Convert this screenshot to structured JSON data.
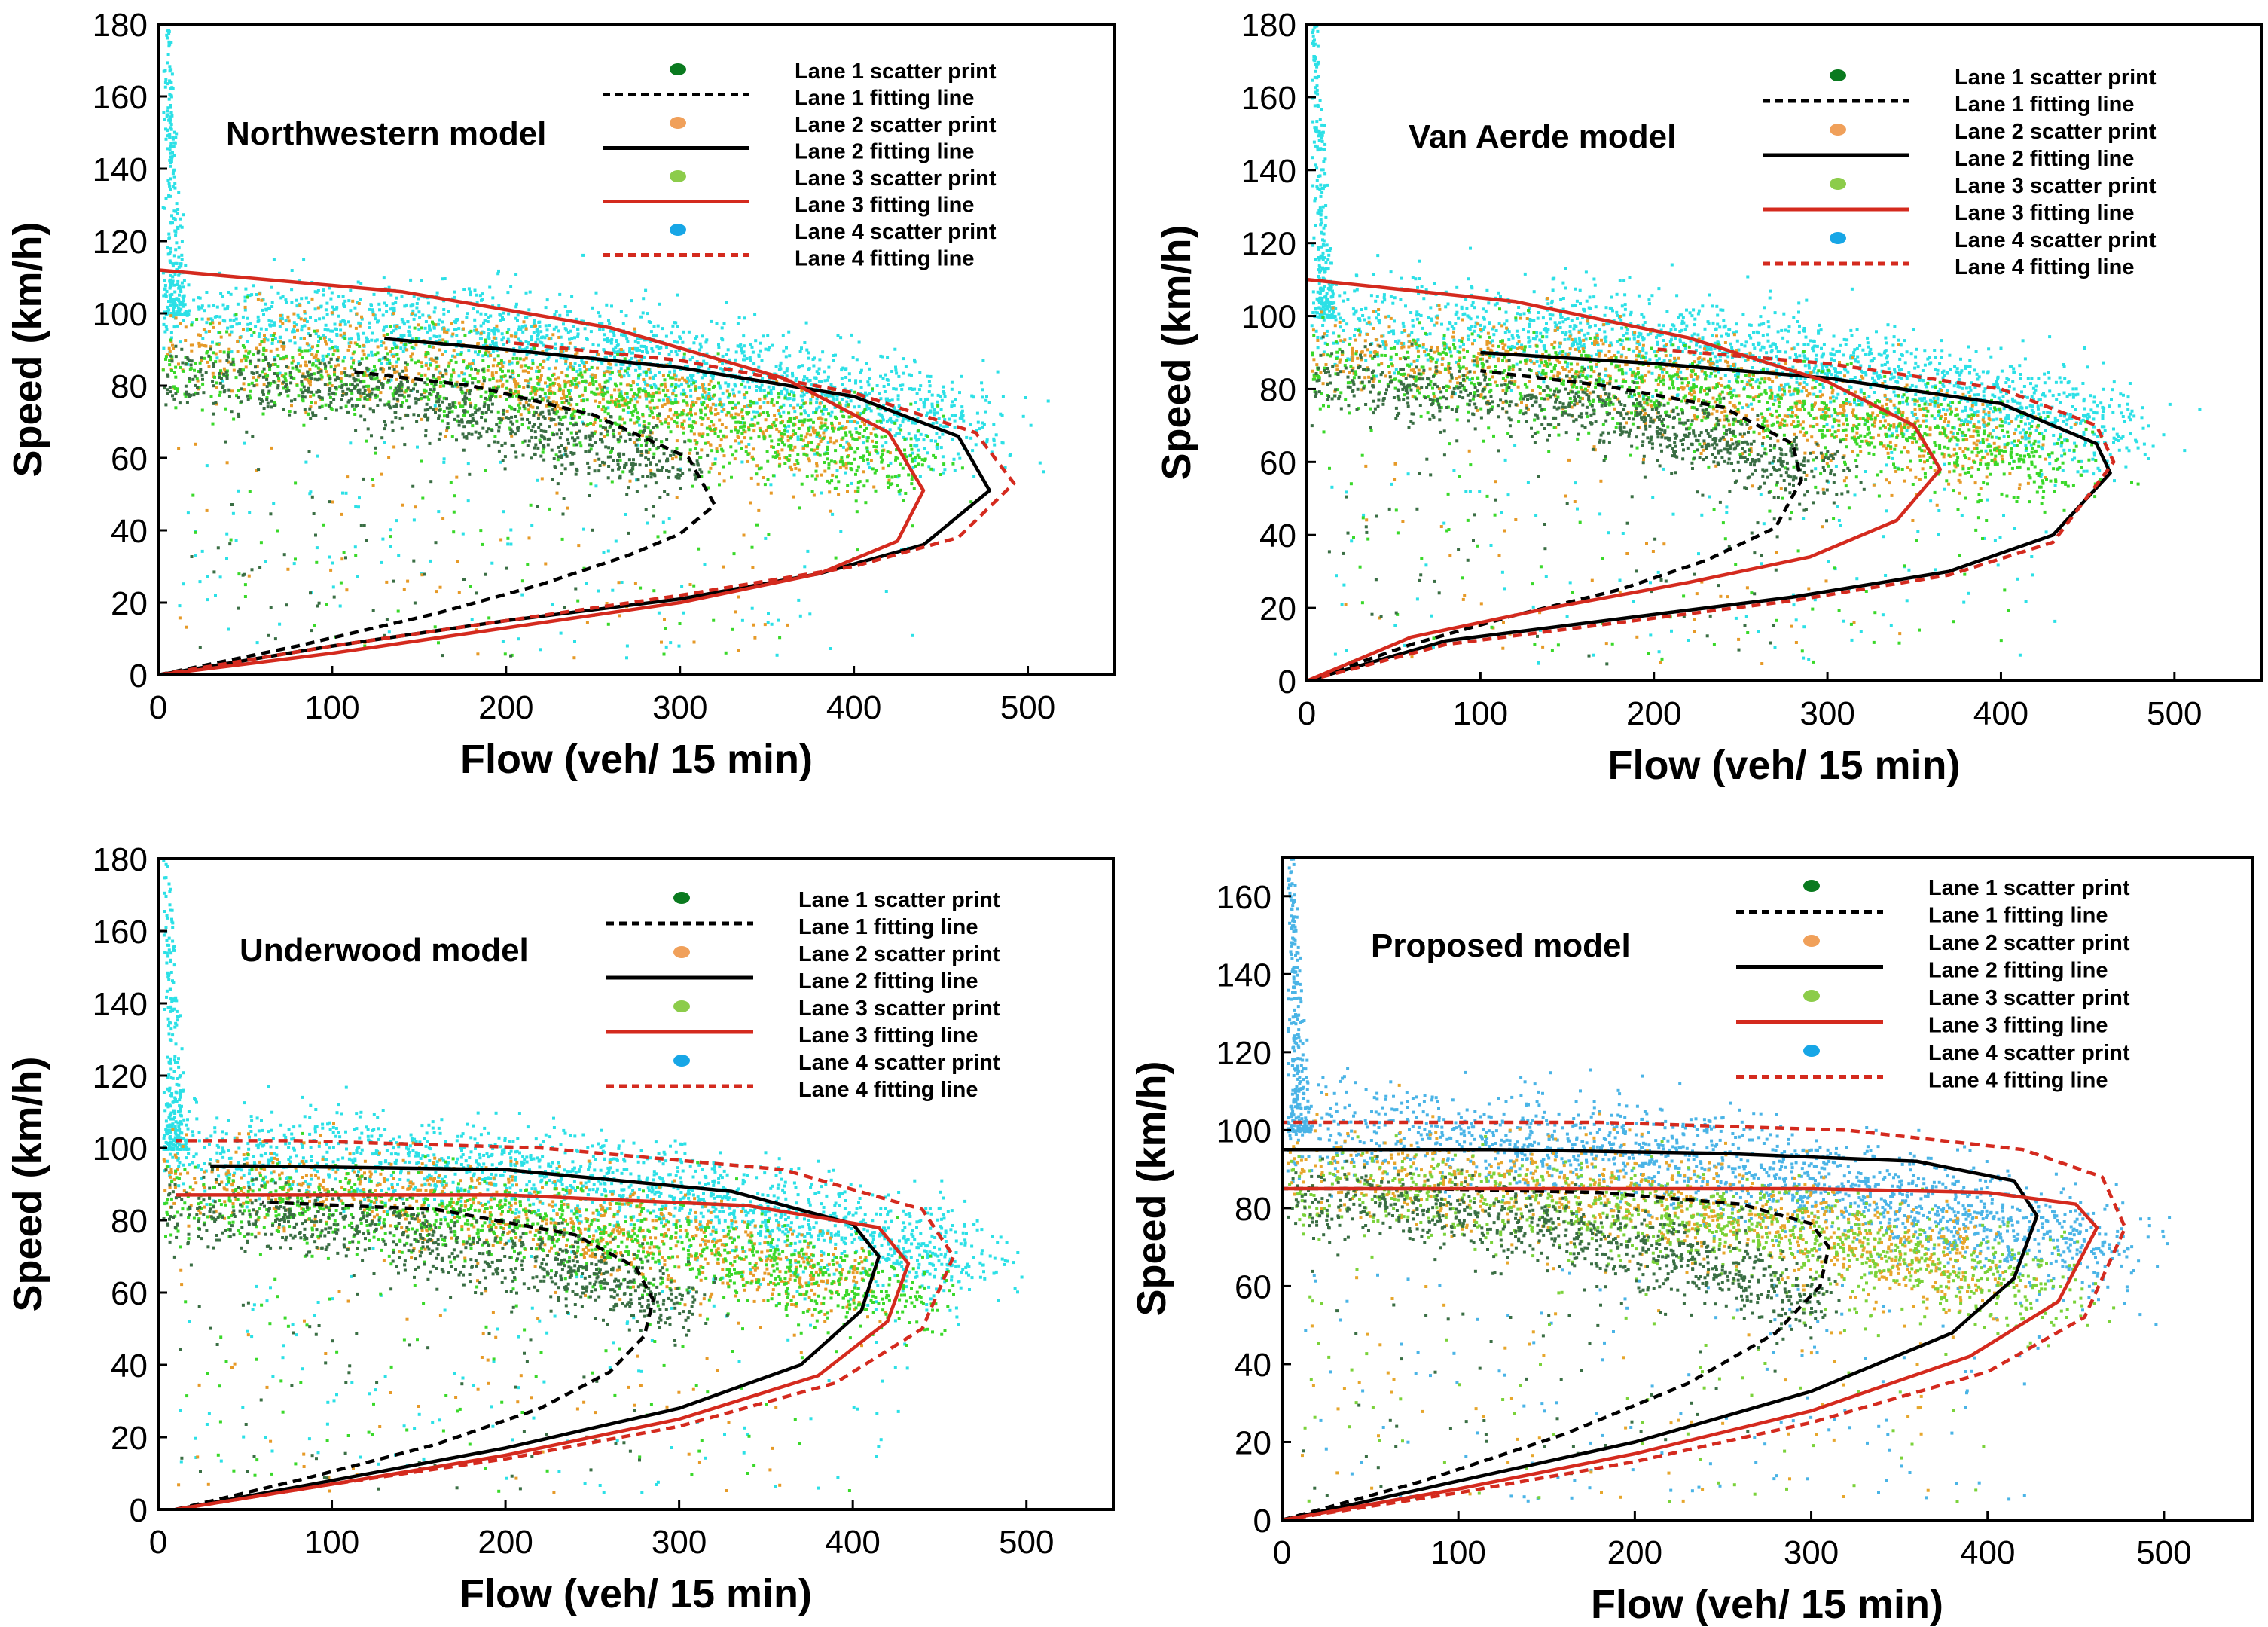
{
  "figure": {
    "shared": {
      "xlabel": "Flow (veh/ 15 min)",
      "ylabel": "Speed (km/h)",
      "legend": [
        {
          "label": "Lane 1 scatter print",
          "kind": "dot",
          "color": "#0a7a1f"
        },
        {
          "label": "Lane 1 fitting line",
          "kind": "line",
          "color": "#000000",
          "dash": true
        },
        {
          "label": "Lane 2 scatter print",
          "kind": "dot",
          "color": "#f0a05a"
        },
        {
          "label": "Lane 2 fitting line",
          "kind": "line",
          "color": "#000000",
          "dash": false
        },
        {
          "label": "Lane 3 scatter print",
          "kind": "dot",
          "color": "#8ccc4a"
        },
        {
          "label": "Lane 3 fitting line",
          "kind": "line",
          "color": "#d42a1e",
          "dash": false
        },
        {
          "label": "Lane 4 scatter print",
          "kind": "dot",
          "color": "#17a6e6"
        },
        {
          "label": "Lane 4 fitting line",
          "kind": "line",
          "color": "#d42a1e",
          "dash": true
        }
      ]
    }
  },
  "chart_data": [
    {
      "type": "scatter",
      "title": "Northwestern model",
      "xlabel": "Flow (veh/ 15 min)",
      "ylabel": "Speed (km/h)",
      "xlim": [
        0,
        550
      ],
      "ylim": [
        0,
        180
      ],
      "xticks": [
        0,
        100,
        200,
        300,
        400,
        500
      ],
      "yticks": [
        0,
        20,
        40,
        60,
        80,
        100,
        120,
        140,
        160,
        180
      ],
      "legend_position": "top-right",
      "scatter_colors": {
        "lane1": "#3a6e44",
        "lane2": "#e69a28",
        "lane3": "#3ad82a",
        "lane4": "#2ce0e6"
      },
      "series": [
        {
          "name": "Lane 1 fitting line",
          "color": "#000000",
          "dash": true,
          "x": [
            0,
            80,
            160,
            220,
            270,
            300,
            320,
            305,
            250,
            180,
            110
          ],
          "y": [
            0,
            8,
            17,
            25,
            33,
            39,
            47,
            60,
            72,
            80,
            84
          ]
        },
        {
          "name": "Lane 2 fitting line",
          "color": "#000000",
          "dash": false,
          "x": [
            0,
            100,
            200,
            300,
            380,
            440,
            478,
            460,
            400,
            300,
            200,
            130
          ],
          "y": [
            0,
            8,
            15,
            21,
            28,
            36,
            51,
            66,
            77,
            85,
            90,
            93
          ]
        },
        {
          "name": "Lane 3 fitting line",
          "color": "#d42a1e",
          "dash": false,
          "x": [
            0,
            100,
            200,
            300,
            380,
            425,
            440,
            420,
            360,
            260,
            140,
            0
          ],
          "y": [
            0,
            6,
            13,
            20,
            28,
            37,
            51,
            67,
            82,
            96,
            106,
            112
          ]
        },
        {
          "name": "Lane 4 fitting line",
          "color": "#d42a1e",
          "dash": true,
          "x": [
            0,
            100,
            200,
            300,
            400,
            460,
            492,
            470,
            400,
            300,
            200
          ],
          "y": [
            0,
            8,
            15,
            22,
            30,
            38,
            53,
            67,
            78,
            87,
            92
          ]
        }
      ]
    },
    {
      "type": "scatter",
      "title": "Van Aerde model",
      "xlabel": "Flow (veh/ 15 min)",
      "ylabel": "Speed (km/h)",
      "xlim": [
        0,
        550
      ],
      "ylim": [
        0,
        180
      ],
      "xticks": [
        0,
        100,
        200,
        300,
        400,
        500
      ],
      "yticks": [
        0,
        20,
        40,
        60,
        80,
        100,
        120,
        140,
        160,
        180
      ],
      "legend_position": "top-right",
      "scatter_colors": {
        "lane1": "#3a6e44",
        "lane2": "#e69a28",
        "lane3": "#3ad82a",
        "lane4": "#2ce0e6"
      },
      "series": [
        {
          "name": "Lane 1 fitting line",
          "color": "#000000",
          "dash": true,
          "x": [
            0,
            60,
            120,
            180,
            230,
            270,
            285,
            280,
            240,
            170,
            100
          ],
          "y": [
            0,
            10,
            18,
            25,
            33,
            42,
            55,
            65,
            75,
            81,
            85
          ]
        },
        {
          "name": "Lane 2 fitting line",
          "color": "#000000",
          "dash": false,
          "x": [
            0,
            80,
            180,
            280,
            370,
            430,
            463,
            455,
            400,
            300,
            200,
            100
          ],
          "y": [
            0,
            11,
            17,
            23,
            30,
            40,
            57,
            65,
            76,
            83,
            87,
            90
          ]
        },
        {
          "name": "Lane 3 fitting line",
          "color": "#d42a1e",
          "dash": false,
          "x": [
            0,
            60,
            140,
            220,
            290,
            340,
            365,
            350,
            300,
            220,
            120,
            0
          ],
          "y": [
            0,
            12,
            20,
            27,
            34,
            44,
            58,
            70,
            82,
            94,
            104,
            110
          ]
        },
        {
          "name": "Lane 4 fitting line",
          "color": "#d42a1e",
          "dash": true,
          "x": [
            0,
            80,
            180,
            280,
            370,
            430,
            465,
            455,
            400,
            300,
            200
          ],
          "y": [
            0,
            10,
            16,
            22,
            29,
            38,
            60,
            70,
            80,
            87,
            91
          ]
        }
      ]
    },
    {
      "type": "scatter",
      "title": "Underwood model",
      "xlabel": "Flow (veh/ 15 min)",
      "ylabel": "Speed (km/h)",
      "xlim": [
        0,
        550
      ],
      "ylim": [
        0,
        180
      ],
      "xticks": [
        0,
        100,
        200,
        300,
        400,
        500
      ],
      "yticks": [
        0,
        20,
        40,
        60,
        80,
        100,
        120,
        140,
        160,
        180
      ],
      "legend_position": "top-right",
      "scatter_colors": {
        "lane1": "#3a6e44",
        "lane2": "#e69a28",
        "lane3": "#3ad82a",
        "lane4": "#2ce0e6"
      },
      "series": [
        {
          "name": "Lane 1 fitting line",
          "color": "#000000",
          "dash": true,
          "x": [
            10,
            80,
            160,
            220,
            260,
            280,
            285,
            275,
            240,
            160,
            60
          ],
          "y": [
            0,
            8,
            18,
            28,
            38,
            48,
            58,
            67,
            76,
            83,
            85
          ]
        },
        {
          "name": "Lane 2 fitting line",
          "color": "#000000",
          "dash": false,
          "x": [
            10,
            100,
            200,
            300,
            370,
            405,
            415,
            400,
            330,
            200,
            60,
            30
          ],
          "y": [
            0,
            8,
            17,
            28,
            40,
            55,
            70,
            79,
            88,
            94,
            95,
            95
          ]
        },
        {
          "name": "Lane 3 fitting line",
          "color": "#d42a1e",
          "dash": false,
          "x": [
            10,
            100,
            200,
            300,
            380,
            420,
            432,
            415,
            340,
            200,
            60,
            10
          ],
          "y": [
            0,
            7,
            15,
            25,
            37,
            52,
            68,
            78,
            84,
            87,
            87,
            87
          ]
        },
        {
          "name": "Lane 4 fitting line",
          "color": "#d42a1e",
          "dash": true,
          "x": [
            10,
            100,
            200,
            300,
            390,
            440,
            458,
            440,
            360,
            220,
            80,
            10
          ],
          "y": [
            0,
            7,
            14,
            23,
            35,
            50,
            70,
            83,
            94,
            100,
            102,
            102
          ]
        }
      ]
    },
    {
      "type": "scatter",
      "title": "Proposed model",
      "xlabel": "Flow (veh/ 15 min)",
      "ylabel": "Speed (km/h)",
      "xlim": [
        0,
        550
      ],
      "ylim": [
        0,
        170
      ],
      "xticks": [
        0,
        100,
        200,
        300,
        400,
        500
      ],
      "yticks": [
        0,
        20,
        40,
        60,
        80,
        100,
        120,
        140,
        160
      ],
      "legend_position": "top-right",
      "scatter_colors": {
        "lane1": "#3a6e44",
        "lane2": "#e6a62c",
        "lane3": "#7ad23a",
        "lane4": "#4ab4e6"
      },
      "series": [
        {
          "name": "Lane 1 fitting line",
          "color": "#000000",
          "dash": true,
          "x": [
            0,
            80,
            160,
            230,
            280,
            305,
            310,
            300,
            260,
            180,
            80,
            0
          ],
          "y": [
            0,
            10,
            22,
            35,
            48,
            60,
            70,
            76,
            81,
            84,
            85,
            85
          ]
        },
        {
          "name": "Lane 2 fitting line",
          "color": "#000000",
          "dash": false,
          "x": [
            0,
            100,
            200,
            300,
            380,
            415,
            428,
            415,
            360,
            250,
            120,
            0
          ],
          "y": [
            0,
            10,
            20,
            33,
            48,
            62,
            78,
            87,
            92,
            94,
            95,
            95
          ]
        },
        {
          "name": "Lane 3 fitting line",
          "color": "#d42a1e",
          "dash": false,
          "x": [
            0,
            100,
            200,
            300,
            390,
            440,
            462,
            450,
            400,
            300,
            150,
            0
          ],
          "y": [
            0,
            8,
            17,
            28,
            42,
            56,
            75,
            81,
            84,
            85,
            85,
            85
          ]
        },
        {
          "name": "Lane 4 fitting line",
          "color": "#d42a1e",
          "dash": true,
          "x": [
            0,
            100,
            200,
            300,
            400,
            455,
            478,
            465,
            420,
            320,
            180,
            0
          ],
          "y": [
            0,
            7,
            15,
            25,
            38,
            52,
            75,
            88,
            95,
            100,
            102,
            102
          ]
        }
      ]
    }
  ]
}
